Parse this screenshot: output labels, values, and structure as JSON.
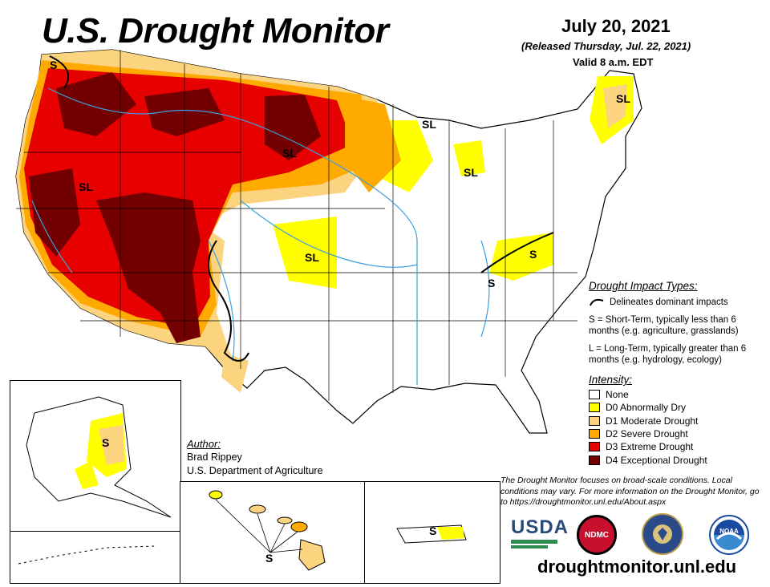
{
  "header": {
    "title": "U.S. Drought Monitor",
    "date": "July 20, 2021",
    "released": "(Released Thursday, Jul. 22, 2021)",
    "valid": "Valid 8 a.m. EDT"
  },
  "impact": {
    "heading": "Drought Impact Types:",
    "line_label": "Delineates dominant impacts",
    "short_term": "S = Short-Term, typically less than 6 months (e.g. agriculture, grasslands)",
    "long_term": "L = Long-Term, typically greater than 6 months (e.g. hydrology, ecology)"
  },
  "intensity": {
    "heading": "Intensity:",
    "items": [
      {
        "label": "None",
        "color": "#ffffff"
      },
      {
        "label": "D0 Abnormally Dry",
        "color": "#ffff00"
      },
      {
        "label": "D1 Moderate Drought",
        "color": "#fcd37f"
      },
      {
        "label": "D2 Severe Drought",
        "color": "#ffaa00"
      },
      {
        "label": "D3 Extreme Drought",
        "color": "#e60000"
      },
      {
        "label": "D4 Exceptional Drought",
        "color": "#730000"
      }
    ]
  },
  "author": {
    "heading": "Author:",
    "name": "Brad Rippey",
    "org": "U.S. Department of Agriculture"
  },
  "disclaimer": "The Drought Monitor focuses on broad-scale conditions. Local conditions may vary. For more information on the Drought Monitor, go to https://droughtmonitor.unl.edu/About.aspx",
  "footer": {
    "url": "droughtmonitor.unl.edu",
    "logos": {
      "usda": "USDA",
      "ndmc": "NDMC",
      "commerce": "commerce-seal-icon",
      "noaa": "NOAA"
    }
  },
  "map_labels": {
    "pnw_s": "S",
    "west_sl": "SL",
    "north_plains_sl": "SL",
    "central_sl": "SL",
    "superior_sl": "SL",
    "michigan_sl": "SL",
    "maine_sl": "SL",
    "va_s": "S",
    "tn_s": "S",
    "alaska_s": "S",
    "hawaii_s": "S",
    "pr_s": "S"
  }
}
